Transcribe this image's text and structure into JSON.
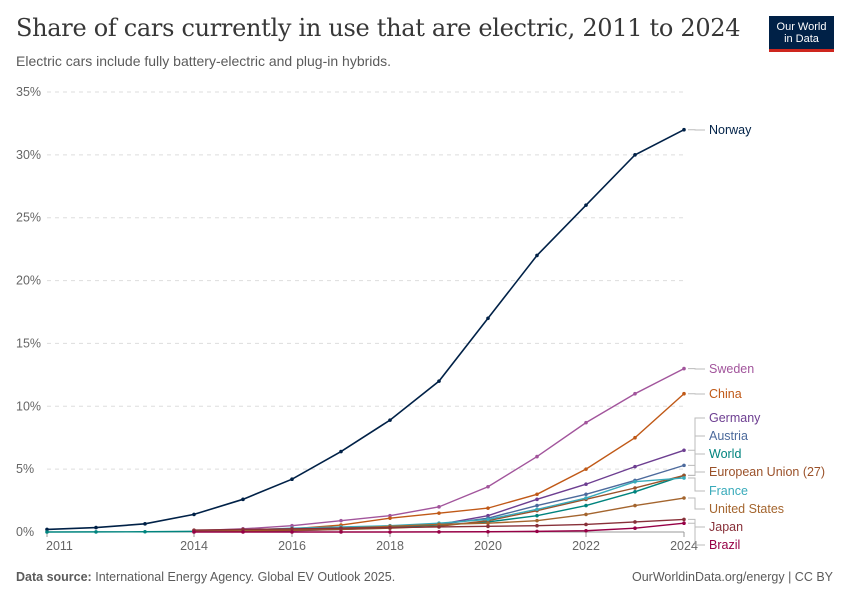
{
  "header": {
    "title": "Share of cars currently in use that are electric, 2011 to 2024",
    "subtitle": "Electric cars include fully battery-electric and plug-in hybrids.",
    "logo_line1": "Our World",
    "logo_line2": "in Data"
  },
  "footer": {
    "source_label": "Data source:",
    "source_text": "International Energy Agency. Global EV Outlook 2025.",
    "credit": "OurWorldinData.org/energy | CC BY"
  },
  "chart_data": {
    "type": "line",
    "title": "Share of cars currently in use that are electric, 2011 to 2024",
    "subtitle": "Electric cars include fully battery-electric and plug-in hybrids.",
    "x_ticks": [
      "2011",
      "2014",
      "2016",
      "2018",
      "2020",
      "2022",
      "2024"
    ],
    "y_ticks": [
      "0%",
      "5%",
      "10%",
      "15%",
      "20%",
      "25%",
      "30%",
      "35%"
    ],
    "xlim": [
      2011,
      2024
    ],
    "ylim": [
      0,
      35
    ],
    "grid": "horizontal dashed",
    "legend": "labels at line ends (right)",
    "series": [
      {
        "name": "Norway",
        "color": "#002147",
        "x": [
          2011,
          2012,
          2013,
          2014,
          2015,
          2016,
          2017,
          2018,
          2019,
          2020,
          2021,
          2022,
          2023,
          2024
        ],
        "values": [
          0.2,
          0.35,
          0.65,
          1.4,
          2.6,
          4.2,
          6.4,
          8.9,
          12,
          17,
          22,
          26,
          30,
          32
        ]
      },
      {
        "name": "Sweden",
        "color": "#a2559c",
        "x": [
          2014,
          2015,
          2016,
          2017,
          2018,
          2019,
          2020,
          2021,
          2022,
          2023,
          2024
        ],
        "values": [
          0.1,
          0.25,
          0.5,
          0.9,
          1.3,
          2.0,
          3.6,
          6.0,
          8.7,
          11,
          13
        ]
      },
      {
        "name": "China",
        "color": "#c05917",
        "x": [
          2014,
          2015,
          2016,
          2017,
          2018,
          2019,
          2020,
          2021,
          2022,
          2023,
          2024
        ],
        "values": [
          0.02,
          0.1,
          0.25,
          0.55,
          1.1,
          1.5,
          1.9,
          3.0,
          5.0,
          7.5,
          11
        ]
      },
      {
        "name": "Germany",
        "color": "#6d3e91",
        "x": [
          2014,
          2015,
          2016,
          2017,
          2018,
          2019,
          2020,
          2021,
          2022,
          2023,
          2024
        ],
        "values": [
          0.05,
          0.07,
          0.1,
          0.2,
          0.35,
          0.6,
          1.3,
          2.6,
          3.8,
          5.2,
          6.5
        ]
      },
      {
        "name": "Austria",
        "color": "#4c6a9c",
        "x": [
          2014,
          2015,
          2016,
          2017,
          2018,
          2019,
          2020,
          2021,
          2022,
          2023,
          2024
        ],
        "values": [
          0.05,
          0.1,
          0.2,
          0.3,
          0.4,
          0.6,
          1.1,
          2.1,
          3.0,
          4.1,
          5.3
        ]
      },
      {
        "name": "World",
        "color": "#00847e",
        "x": [
          2011,
          2012,
          2013,
          2014,
          2015,
          2016,
          2017,
          2018,
          2019,
          2020,
          2021,
          2022,
          2023,
          2024
        ],
        "values": [
          0.0,
          0.01,
          0.02,
          0.05,
          0.1,
          0.2,
          0.3,
          0.4,
          0.55,
          0.8,
          1.3,
          2.1,
          3.2,
          4.5
        ]
      },
      {
        "name": "European Union (27)",
        "color": "#9a5129",
        "x": [
          2014,
          2015,
          2016,
          2017,
          2018,
          2019,
          2020,
          2021,
          2022,
          2023,
          2024
        ],
        "values": [
          0.05,
          0.08,
          0.13,
          0.2,
          0.3,
          0.45,
          0.9,
          1.7,
          2.6,
          3.5,
          4.5
        ]
      },
      {
        "name": "France",
        "color": "#38aaba",
        "x": [
          2014,
          2015,
          2016,
          2017,
          2018,
          2019,
          2020,
          2021,
          2022,
          2023,
          2024
        ],
        "values": [
          0.1,
          0.15,
          0.3,
          0.4,
          0.5,
          0.7,
          1.0,
          1.8,
          2.7,
          4.0,
          4.3
        ]
      },
      {
        "name": "United States",
        "color": "#a4652e",
        "x": [
          2014,
          2015,
          2016,
          2017,
          2018,
          2019,
          2020,
          2021,
          2022,
          2023,
          2024
        ],
        "values": [
          0.1,
          0.15,
          0.22,
          0.3,
          0.45,
          0.6,
          0.7,
          0.9,
          1.4,
          2.1,
          2.7
        ]
      },
      {
        "name": "Japan",
        "color": "#883039",
        "x": [
          2014,
          2015,
          2016,
          2017,
          2018,
          2019,
          2020,
          2021,
          2022,
          2023,
          2024
        ],
        "values": [
          0.15,
          0.2,
          0.25,
          0.3,
          0.35,
          0.4,
          0.45,
          0.5,
          0.6,
          0.8,
          1.0
        ]
      },
      {
        "name": "Brazil",
        "color": "#970046",
        "x": [
          2014,
          2015,
          2016,
          2017,
          2018,
          2019,
          2020,
          2021,
          2022,
          2023,
          2024
        ],
        "values": [
          0.0,
          0.0,
          0.0,
          0.0,
          0.0,
          0.01,
          0.02,
          0.05,
          0.1,
          0.3,
          0.7
        ]
      }
    ]
  }
}
